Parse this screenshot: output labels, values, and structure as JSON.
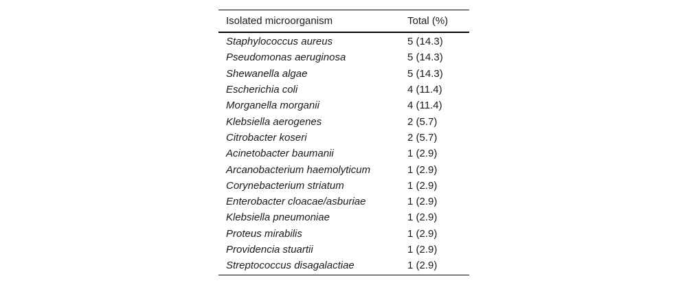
{
  "table": {
    "headers": {
      "organism": "Isolated microorganism",
      "total": "Total (%)"
    },
    "rows": [
      {
        "organism": "Staphylococcus aureus",
        "total": "5 (14.3)"
      },
      {
        "organism": "Pseudomonas aeruginosa",
        "total": "5 (14.3)"
      },
      {
        "organism": "Shewanella algae",
        "total": "5 (14.3)"
      },
      {
        "organism": "Escherichia coli",
        "total": "4 (11.4)"
      },
      {
        "organism": "Morganella morganii",
        "total": "4 (11.4)"
      },
      {
        "organism": "Klebsiella aerogenes",
        "total": "2 (5.7)"
      },
      {
        "organism": "Citrobacter koseri",
        "total": "2 (5.7)"
      },
      {
        "organism": "Acinetobacter baumanii",
        "total": "1 (2.9)"
      },
      {
        "organism": "Arcanobacterium haemolyticum",
        "total": "1 (2.9)"
      },
      {
        "organism": "Corynebacterium striatum",
        "total": "1 (2.9)"
      },
      {
        "organism": "Enterobacter cloacae/asburiae",
        "total": "1 (2.9)"
      },
      {
        "organism": "Klebsiella pneumoniae",
        "total": "1 (2.9)"
      },
      {
        "organism": "Proteus mirabilis",
        "total": "1 (2.9)"
      },
      {
        "organism": "Providencia stuartii",
        "total": "1 (2.9)"
      },
      {
        "organism": "Streptococcus disagalactiae",
        "total": "1 (2.9)"
      }
    ],
    "colors": {
      "text": "#1a1a1a",
      "rule": "#000000",
      "background": "#ffffff"
    }
  }
}
